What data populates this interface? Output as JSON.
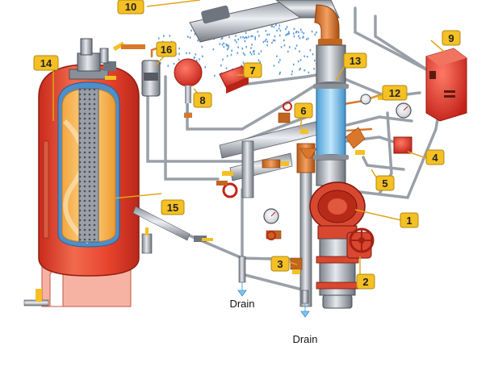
{
  "labels": {
    "l1": "1",
    "l2": "2",
    "l3": "3",
    "l4": "4",
    "l5": "5",
    "l6": "6",
    "l7": "7",
    "l8": "8",
    "l9": "9",
    "l10": "10",
    "l12": "12",
    "l13": "13",
    "l14": "14",
    "l15": "15",
    "l16": "16"
  },
  "drains": {
    "left": "Drain",
    "right": "Drain"
  },
  "colors": {
    "tag_fill": "#f5c024",
    "tag_stroke": "#b08a10",
    "tank_red": "#e8432c",
    "tank_light": "#f8a08a",
    "pipe_grey": "#b9bdc4",
    "pipe_dark": "#7d838c",
    "copper": "#d9772b",
    "glass_blue": "#7fc6ee",
    "alarm_red": "#e5382a",
    "spray_blue": "#5b9ad8"
  }
}
